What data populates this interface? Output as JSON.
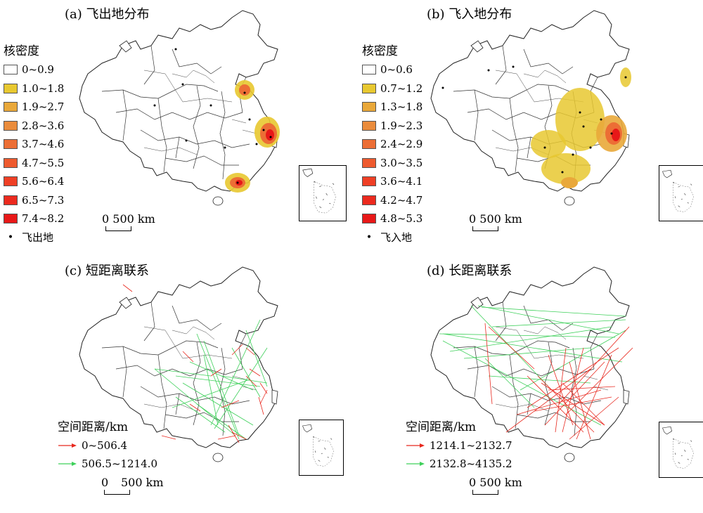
{
  "panels": {
    "a": {
      "title": "(a) 飞出地分布"
    },
    "b": {
      "title": "(b) 飞入地分布"
    },
    "c": {
      "title": "(c) 短距离联系"
    },
    "d": {
      "title": "(d) 长距离联系"
    }
  },
  "legend_a": {
    "title": "核密度",
    "classes": [
      {
        "label": "0~0.9",
        "color": "#ffffff"
      },
      {
        "label": "1.0~1.8",
        "color": "#e8c830"
      },
      {
        "label": "1.9~2.7",
        "color": "#e9a83a"
      },
      {
        "label": "2.8~3.6",
        "color": "#ea8c3c"
      },
      {
        "label": "3.7~4.6",
        "color": "#ec6e35"
      },
      {
        "label": "4.7~5.5",
        "color": "#ee5a2e"
      },
      {
        "label": "5.6~6.4",
        "color": "#ef3f25"
      },
      {
        "label": "6.5~7.3",
        "color": "#ec2a1e"
      },
      {
        "label": "7.4~8.2",
        "color": "#e81818"
      }
    ],
    "point_label": "飞出地"
  },
  "legend_b": {
    "title": "核密度",
    "classes": [
      {
        "label": "0~0.6",
        "color": "#ffffff"
      },
      {
        "label": "0.7~1.2",
        "color": "#e8c830"
      },
      {
        "label": "1.3~1.8",
        "color": "#e9a83a"
      },
      {
        "label": "1.9~2.3",
        "color": "#ea8c3c"
      },
      {
        "label": "2.4~2.9",
        "color": "#ec6e35"
      },
      {
        "label": "3.0~3.5",
        "color": "#ee5a2e"
      },
      {
        "label": "3.6~4.1",
        "color": "#ef3f25"
      },
      {
        "label": "4.2~4.7",
        "color": "#ec2a1e"
      },
      {
        "label": "4.8~5.3",
        "color": "#e81818"
      }
    ],
    "point_label": "飞入地"
  },
  "legend_c": {
    "title": "空间距离/km",
    "items": [
      {
        "label": "0~506.4",
        "color": "#e8281e"
      },
      {
        "label": "506.5~1214.0",
        "color": "#3ed05a"
      }
    ]
  },
  "legend_d": {
    "title": "空间距离/km",
    "items": [
      {
        "label": "1214.1~2132.7",
        "color": "#e8281e"
      },
      {
        "label": "2132.8~4135.2",
        "color": "#3ed05a"
      }
    ]
  },
  "scale": {
    "label_a": "0 500 km",
    "label_b": "0 500 km",
    "label_c_zero": "0",
    "label_c_km": "500 km",
    "label_d": "0 500 km"
  },
  "colors": {
    "outline": "#333333",
    "red": "#e8281e",
    "green": "#3ed05a",
    "yellow": "#e8c830",
    "orange": "#ec6e35"
  }
}
